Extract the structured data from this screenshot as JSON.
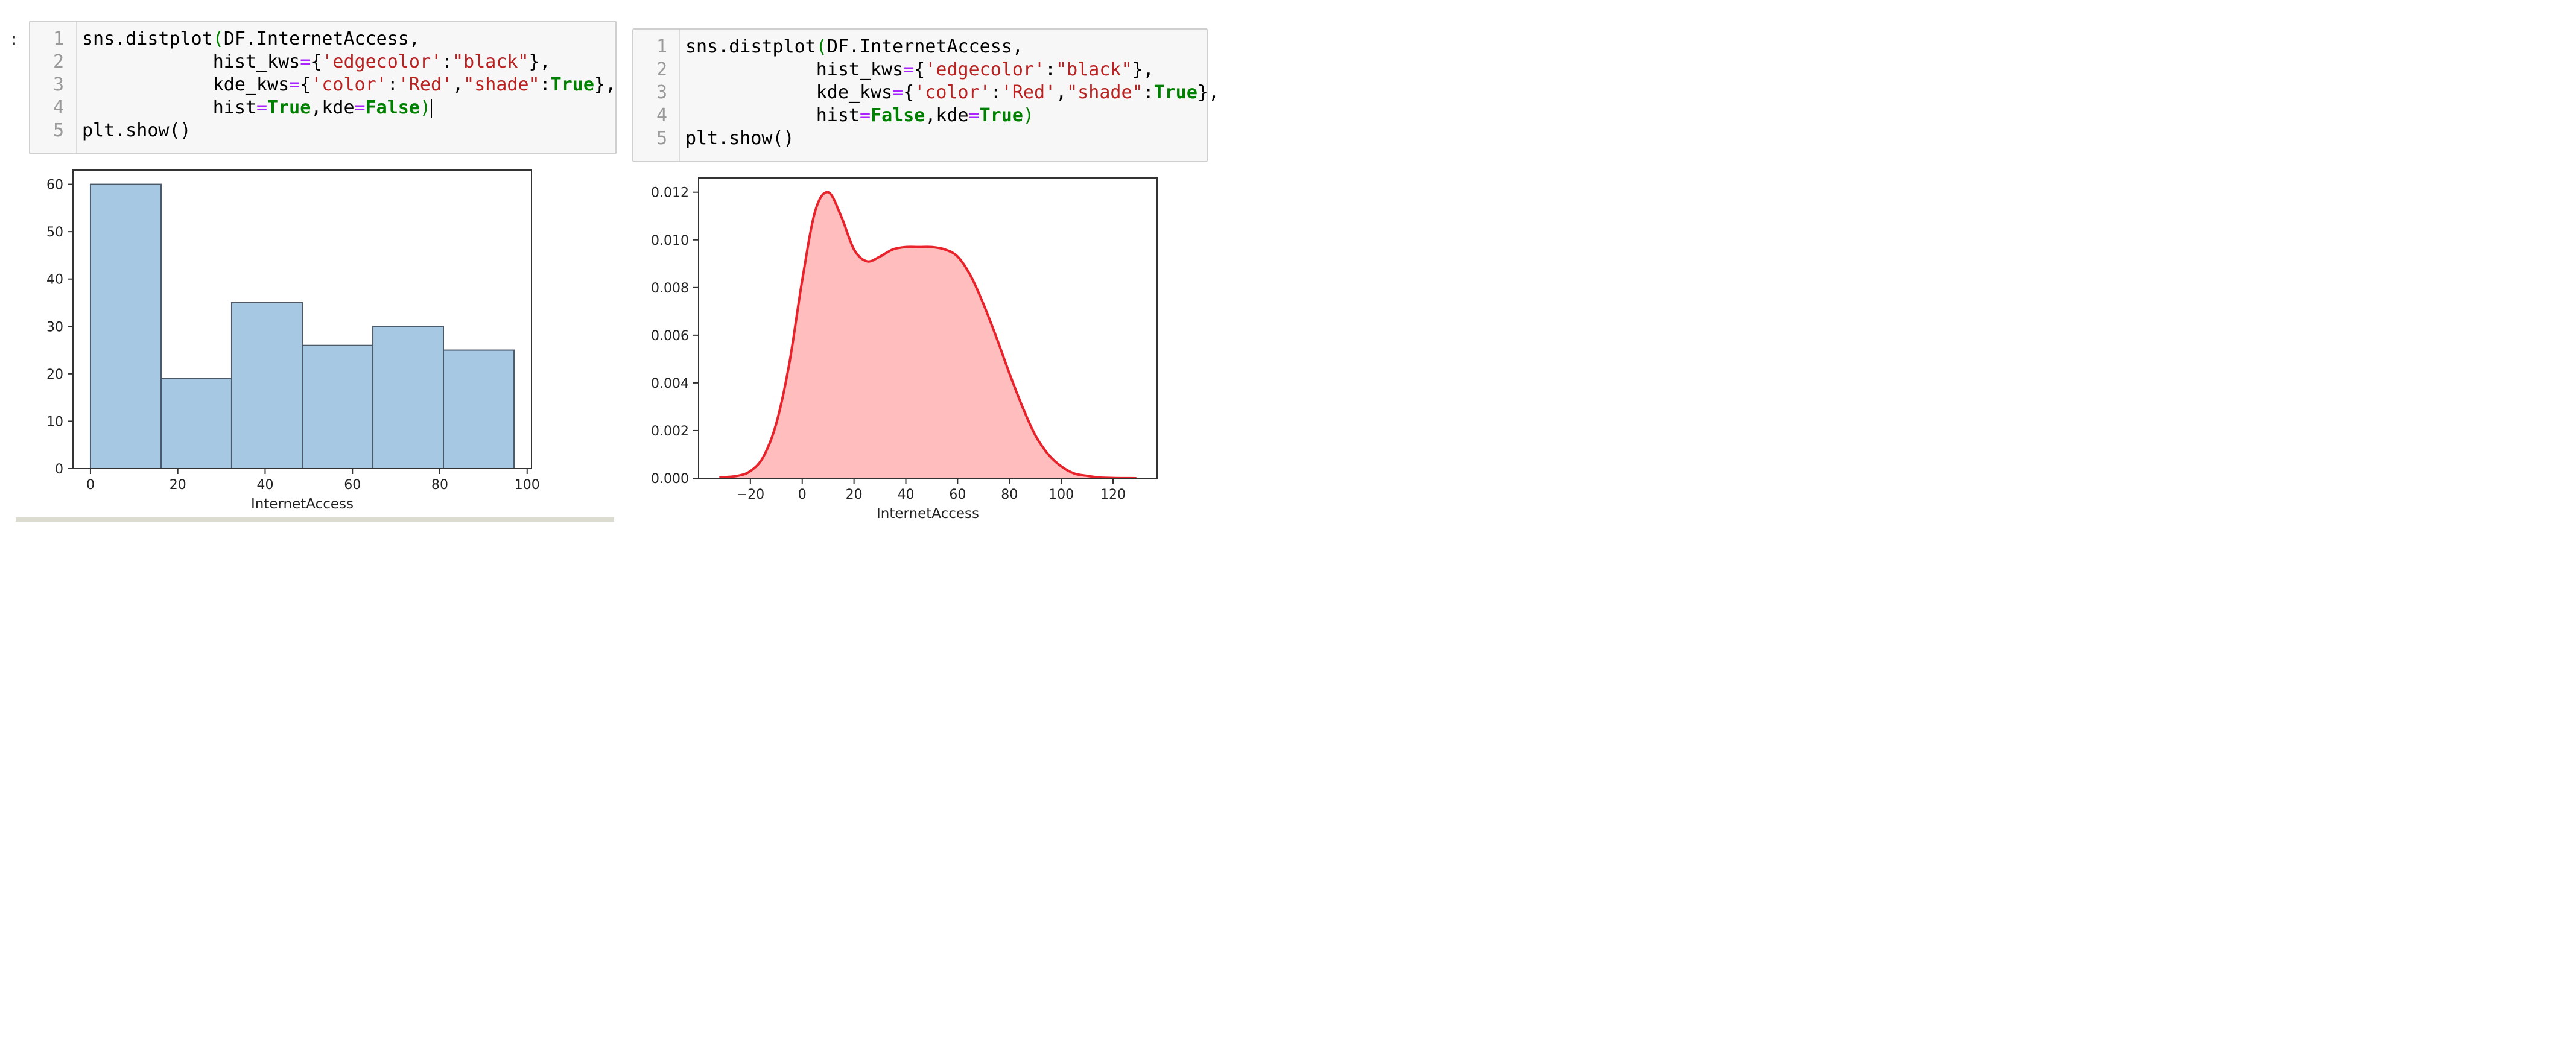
{
  "left_cell": {
    "prompt": ":",
    "line_numbers": [
      "1",
      "2",
      "3",
      "4",
      "5"
    ],
    "code": {
      "l1_a": "sns.distplot",
      "l1_b": "(",
      "l1_c": "DF.InternetAccess,",
      "l2_a": "            hist_kws",
      "l2_b": "=",
      "l2_c": "{",
      "l2_d": "'edgecolor'",
      "l2_e": ":",
      "l2_f": "\"black\"",
      "l2_g": "},",
      "l3_a": "            kde_kws",
      "l3_b": "=",
      "l3_c": "{",
      "l3_d": "'color'",
      "l3_e": ":",
      "l3_f": "'Red'",
      "l3_g": ",",
      "l3_h": "\"shade\"",
      "l3_i": ":",
      "l3_j": "True",
      "l3_k": "},",
      "l4_a": "            hist",
      "l4_b": "=",
      "l4_c": "True",
      "l4_d": ",kde",
      "l4_e": "=",
      "l4_f": "False",
      "l4_g": ")",
      "l5": "plt.show()"
    }
  },
  "right_cell": {
    "line_numbers": [
      "1",
      "2",
      "3",
      "4",
      "5"
    ],
    "code": {
      "l1_a": "sns.distplot",
      "l1_b": "(",
      "l1_c": "DF.InternetAccess,",
      "l2_a": "            hist_kws",
      "l2_b": "=",
      "l2_c": "{",
      "l2_d": "'edgecolor'",
      "l2_e": ":",
      "l2_f": "\"black\"",
      "l2_g": "},",
      "l3_a": "            kde_kws",
      "l3_b": "=",
      "l3_c": "{",
      "l3_d": "'color'",
      "l3_e": ":",
      "l3_f": "'Red'",
      "l3_g": ",",
      "l3_h": "\"shade\"",
      "l3_i": ":",
      "l3_j": "True",
      "l3_k": "},",
      "l4_a": "            hist",
      "l4_b": "=",
      "l4_c": "False",
      "l4_d": ",kde",
      "l4_e": "=",
      "l4_f": "True",
      "l4_g": ")",
      "l5": "plt.show()"
    }
  },
  "chart_data": [
    {
      "type": "bar",
      "xlabel": "InternetAccess",
      "bin_edges": [
        0,
        16.17,
        32.33,
        48.5,
        64.67,
        80.83,
        97
      ],
      "values": [
        60,
        19,
        35,
        26,
        30,
        25
      ],
      "xticks": [
        "0",
        "20",
        "40",
        "60",
        "80",
        "100"
      ],
      "yticks": [
        "0",
        "10",
        "20",
        "30",
        "40",
        "50",
        "60"
      ],
      "xlim": [
        -4,
        101
      ],
      "ylim": [
        0,
        63
      ],
      "bar_color": "#a6c8e2",
      "edge_color": "#4a5a6a"
    },
    {
      "type": "area",
      "xlabel": "InternetAccess",
      "x": [
        -32,
        -25,
        -20,
        -15,
        -10,
        -5,
        0,
        5,
        10,
        15,
        20,
        25,
        30,
        35,
        40,
        45,
        50,
        55,
        60,
        65,
        70,
        75,
        80,
        85,
        90,
        95,
        100,
        105,
        110,
        115,
        120,
        125,
        129
      ],
      "y": [
        3e-05,
        0.0001,
        0.0003,
        0.0009,
        0.0023,
        0.0048,
        0.0083,
        0.0112,
        0.012,
        0.011,
        0.0096,
        0.0091,
        0.0093,
        0.0096,
        0.0097,
        0.0097,
        0.0097,
        0.0096,
        0.0093,
        0.0085,
        0.0073,
        0.0059,
        0.0044,
        0.003,
        0.0018,
        0.001,
        0.0005,
        0.0002,
        0.0001,
        3e-05,
        1e-05,
        3e-06,
        1e-06
      ],
      "xticks": [
        "−20",
        "0",
        "20",
        "40",
        "60",
        "80",
        "100",
        "120"
      ],
      "yticks": [
        "0.000",
        "0.002",
        "0.004",
        "0.006",
        "0.008",
        "0.010",
        "0.012"
      ],
      "xlim": [
        -40,
        137
      ],
      "ylim": [
        0,
        0.0126
      ],
      "line_color": "#e8232b",
      "fill_color": "#ffbdbd"
    }
  ]
}
